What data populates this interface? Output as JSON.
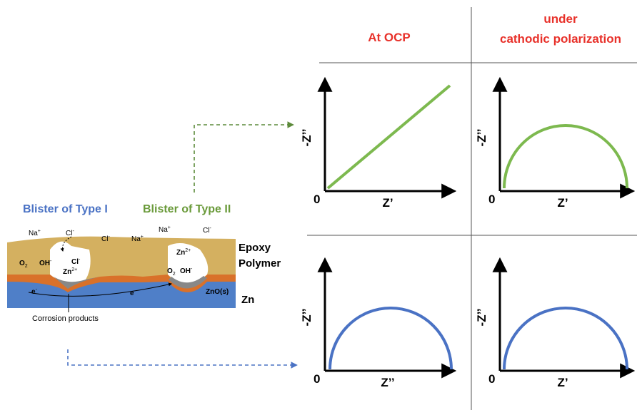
{
  "header": {
    "col1": "At OCP",
    "col2_line1": "under",
    "col2_line2": "cathodic polarization"
  },
  "blisters": {
    "type1": "Blister of Type I",
    "type2": "Blister of Type II"
  },
  "schematic": {
    "layer_epoxy_line1": "Epoxy",
    "layer_epoxy_line2": "Polymer",
    "layer_zn": "Zn",
    "caption": "Corrosion products",
    "species": [
      {
        "base": "Na",
        "sup": "+"
      },
      {
        "base": "Cl",
        "sup": "-"
      },
      {
        "base": "Cl",
        "sup": "-"
      },
      {
        "base": "Na",
        "sup": "+"
      },
      {
        "base": "Na",
        "sup": "+"
      },
      {
        "base": "Cl",
        "sup": "-"
      },
      {
        "base": "O",
        "sub": "2"
      },
      {
        "base": "OH",
        "sup": "-"
      },
      {
        "base": "Cl",
        "sup": "-"
      },
      {
        "base": "Zn",
        "sup": "2+"
      },
      {
        "base": "Zn",
        "sup": "2+"
      },
      {
        "base": "O",
        "sub": "2"
      },
      {
        "base": "OH",
        "sup": "-"
      },
      {
        "base": "e",
        "sup": "-"
      },
      {
        "base": "e",
        "sup": "-"
      },
      {
        "base": "ZnO(s)"
      }
    ]
  },
  "plots": [
    {
      "y_label": "-Z’’",
      "x_label": "Z’",
      "origin": "0"
    },
    {
      "y_label": "-Z’’",
      "x_label": "Z’",
      "origin": "0"
    },
    {
      "y_label": "-Z’’",
      "x_label": "Z’’",
      "origin": "0"
    },
    {
      "y_label": "-Z’’",
      "x_label": "Z’",
      "origin": "0"
    }
  ]
}
